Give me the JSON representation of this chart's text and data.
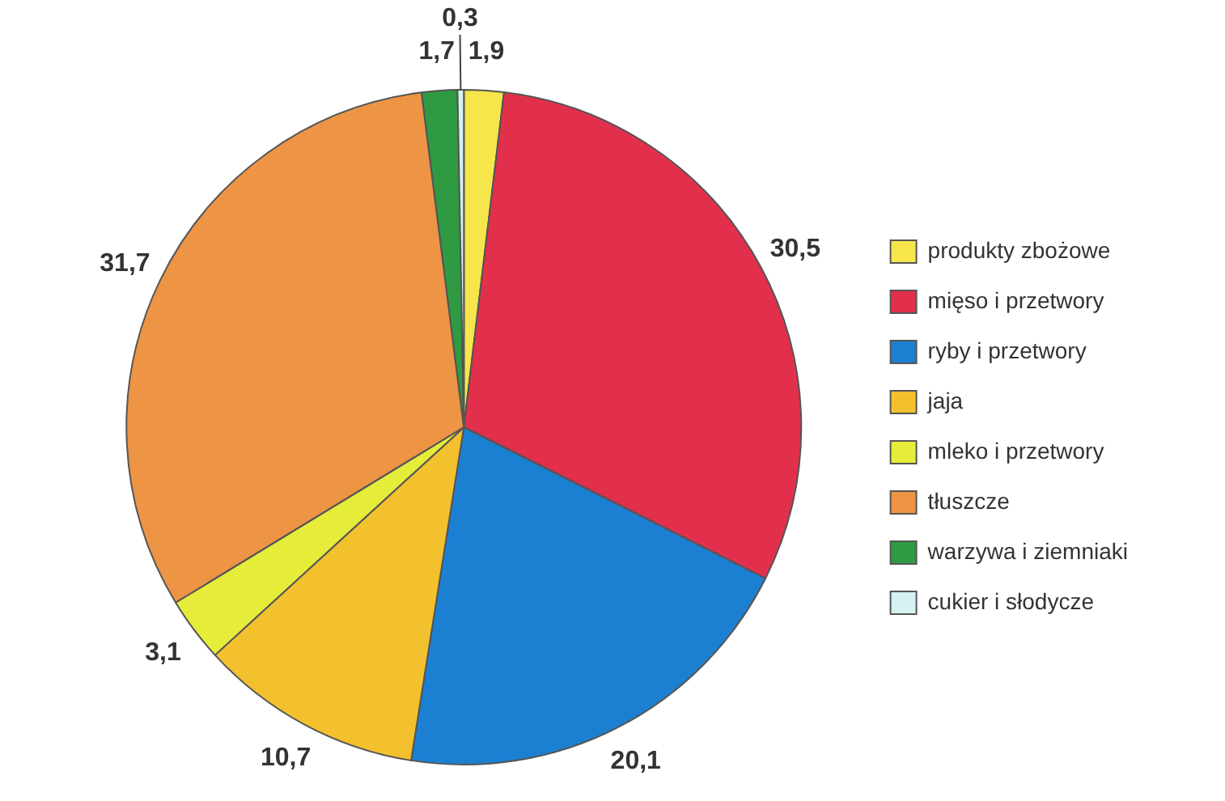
{
  "chart_data": {
    "type": "pie",
    "categories": [
      "produkty zbożowe",
      "mięso i przetwory",
      "ryby i przetwory",
      "jaja",
      "mleko i przetwory",
      "tłuszcze",
      "warzywa i ziemniaki",
      "cukier i słodycze"
    ],
    "values": [
      1.9,
      30.5,
      20.1,
      10.7,
      3.1,
      31.7,
      1.7,
      0.3
    ],
    "colors": [
      "#f6e64c",
      "#e2304c",
      "#1c80d2",
      "#f3c12e",
      "#e6ec3a",
      "#ed9445",
      "#2e9b42",
      "#d6f2f2"
    ],
    "value_labels": [
      "1,9",
      "30,5",
      "20,1",
      "10,7",
      "3,1",
      "31,7",
      "1,7",
      "0,3"
    ],
    "legend": "right"
  }
}
